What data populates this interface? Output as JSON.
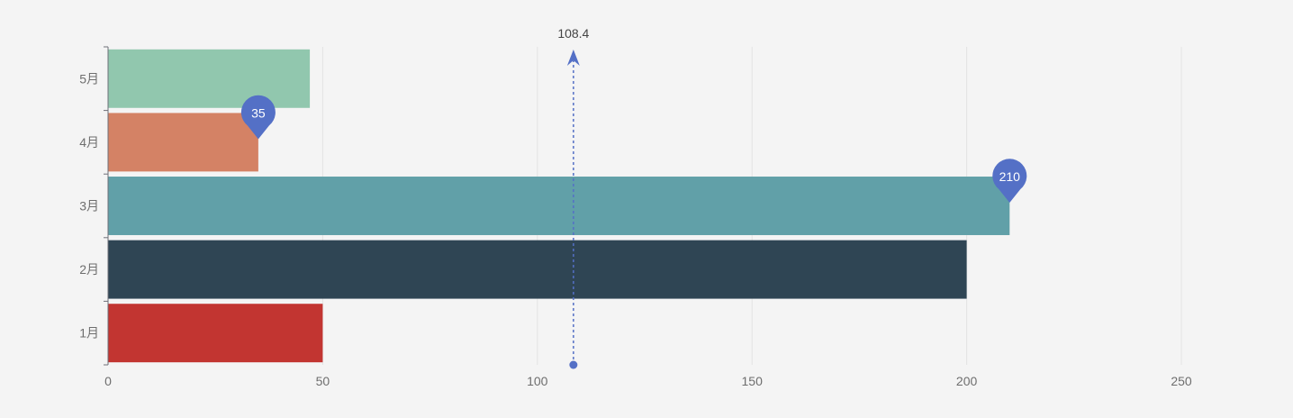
{
  "chart_data": {
    "type": "bar",
    "orientation": "horizontal",
    "categories": [
      "1月",
      "2月",
      "3月",
      "4月",
      "5月"
    ],
    "values": [
      50,
      200,
      210,
      35,
      47
    ],
    "bar_colors": [
      "#c23531",
      "#2f4554",
      "#61a0a8",
      "#d48265",
      "#91c7ae"
    ],
    "xlim": [
      0,
      250
    ],
    "x_ticks": [
      0,
      50,
      100,
      150,
      200,
      250
    ],
    "x_tick_labels": [
      "0",
      "50",
      "100",
      "150",
      "200",
      "250"
    ],
    "grid": true,
    "mark_points": [
      {
        "category": "4月",
        "value": 35,
        "label": "35"
      },
      {
        "category": "3月",
        "value": 210,
        "label": "210"
      }
    ],
    "mark_line": {
      "value": 108.4,
      "label": "108.4"
    },
    "marker_color": "#5470c6"
  }
}
